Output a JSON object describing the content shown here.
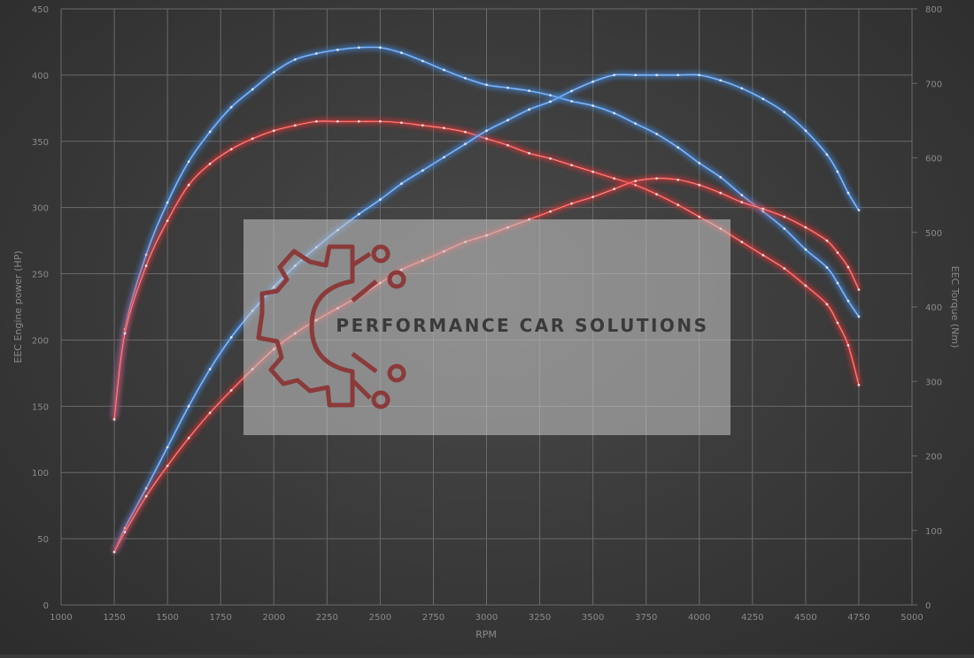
{
  "chart_data": {
    "type": "line",
    "xlabel": "RPM",
    "ylabel_left": "EEC Engine power (HP)",
    "ylabel_right": "EEC Torque (Nm)",
    "xlim": [
      1000,
      5000
    ],
    "ylim_left": [
      0,
      450
    ],
    "ylim_right": [
      0,
      800
    ],
    "x_ticks": [
      1000,
      1250,
      1500,
      1750,
      2000,
      2250,
      2500,
      2750,
      3000,
      3250,
      3500,
      3750,
      4000,
      4250,
      4500,
      4750,
      5000
    ],
    "y_ticks_left": [
      0,
      50,
      100,
      150,
      200,
      250,
      300,
      350,
      400,
      450
    ],
    "y_ticks_right": [
      0,
      100,
      200,
      300,
      400,
      500,
      600,
      700,
      800
    ],
    "grid": true,
    "series": [
      {
        "axis": "right",
        "color": "#4a8fe7",
        "x": [
          1250,
          1300,
          1400,
          1500,
          1600,
          1700,
          1800,
          1900,
          2000,
          2100,
          2200,
          2300,
          2400,
          2500,
          2600,
          2700,
          2800,
          2900,
          3000,
          3100,
          3200,
          3300,
          3400,
          3500,
          3600,
          3700,
          3800,
          3900,
          4000,
          4100,
          4200,
          4300,
          4400,
          4500,
          4600,
          4650,
          4700,
          4750
        ],
        "values": [
          250,
          370,
          470,
          540,
          595,
          635,
          668,
          692,
          715,
          732,
          740,
          745,
          748,
          748,
          741,
          730,
          718,
          707,
          698,
          694,
          690,
          684,
          676,
          670,
          660,
          646,
          632,
          614,
          593,
          574,
          550,
          528,
          505,
          477,
          453,
          432,
          408,
          387
        ]
      },
      {
        "axis": "left",
        "color": "#e23b3b",
        "x": [
          1250,
          1300,
          1400,
          1500,
          1600,
          1700,
          1800,
          1900,
          2000,
          2100,
          2200,
          2300,
          2400,
          2500,
          2600,
          2700,
          2800,
          2900,
          3000,
          3100,
          3200,
          3300,
          3400,
          3500,
          3600,
          3700,
          3800,
          3900,
          4000,
          4100,
          4200,
          4300,
          4400,
          4500,
          4600,
          4650,
          4700,
          4750
        ],
        "values": [
          140,
          205,
          256,
          290,
          317,
          333,
          344,
          352,
          358,
          362,
          365,
          365,
          365,
          365,
          364,
          362,
          360,
          357,
          352,
          347,
          341,
          337,
          332,
          327,
          322,
          317,
          310,
          302,
          293,
          284,
          274,
          264,
          254,
          241,
          227,
          213,
          196,
          166
        ]
      },
      {
        "axis": "left",
        "color": "#4a8fe7",
        "x": [
          1250,
          1300,
          1400,
          1500,
          1600,
          1700,
          1800,
          1900,
          2000,
          2100,
          2200,
          2300,
          2400,
          2500,
          2600,
          2700,
          2800,
          2900,
          3000,
          3100,
          3200,
          3300,
          3400,
          3500,
          3600,
          3700,
          3800,
          3900,
          4000,
          4100,
          4200,
          4300,
          4400,
          4500,
          4600,
          4650,
          4700,
          4750
        ],
        "values": [
          40,
          58,
          88,
          119,
          150,
          178,
          202,
          222,
          240,
          256,
          270,
          283,
          295,
          306,
          318,
          328,
          338,
          348,
          358,
          366,
          374,
          380,
          388,
          395,
          400,
          400,
          400,
          400,
          400,
          396,
          390,
          382,
          372,
          358,
          340,
          327,
          311,
          298
        ]
      },
      {
        "axis": "left",
        "color": "#e23b3b",
        "x": [
          1250,
          1300,
          1400,
          1500,
          1600,
          1700,
          1800,
          1900,
          2000,
          2100,
          2200,
          2300,
          2400,
          2500,
          2600,
          2700,
          2800,
          2900,
          3000,
          3100,
          3200,
          3300,
          3400,
          3500,
          3600,
          3700,
          3800,
          3900,
          4000,
          4100,
          4200,
          4300,
          4400,
          4500,
          4600,
          4650,
          4700,
          4750
        ],
        "values": [
          40,
          55,
          82,
          105,
          126,
          145,
          162,
          178,
          193,
          205,
          215,
          224,
          233,
          243,
          253,
          260,
          267,
          274,
          279,
          285,
          291,
          297,
          303,
          308,
          314,
          320,
          322,
          321,
          317,
          311,
          304,
          299,
          293,
          285,
          275,
          266,
          255,
          238
        ]
      }
    ]
  },
  "watermark": {
    "text": "PERFORMANCE CAR SOLUTIONS"
  }
}
